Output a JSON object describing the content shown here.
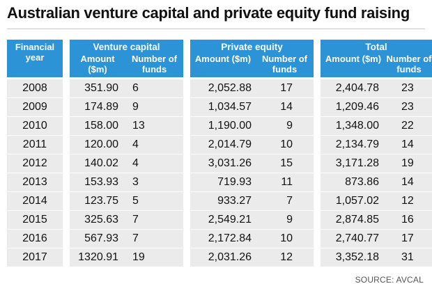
{
  "title": "Australian venture capital and private equity fund raising",
  "header": {
    "financial_year": "Financial year",
    "groups": [
      {
        "title": "Venture capital",
        "amount": "Amount ($m)",
        "count": "Number of funds"
      },
      {
        "title": "Private equity",
        "amount": "Amount ($m)",
        "count": "Number of funds"
      },
      {
        "title": "Total",
        "amount": "Amount ($m)",
        "count": "Number of funds"
      }
    ]
  },
  "rows": [
    {
      "year": "2008",
      "vc_amount": "351.90",
      "vc_funds": "6",
      "pe_amount": "2,052.88",
      "pe_funds": "17",
      "total_amount": "2,404.78",
      "total_funds": "23"
    },
    {
      "year": "2009",
      "vc_amount": "174.89",
      "vc_funds": "9",
      "pe_amount": "1,034.57",
      "pe_funds": "14",
      "total_amount": "1,209.46",
      "total_funds": "23"
    },
    {
      "year": "2010",
      "vc_amount": "158.00",
      "vc_funds": "13",
      "pe_amount": "1,190.00",
      "pe_funds": "9",
      "total_amount": "1,348.00",
      "total_funds": "22"
    },
    {
      "year": "2011",
      "vc_amount": "120.00",
      "vc_funds": "4",
      "pe_amount": "2,014.79",
      "pe_funds": "10",
      "total_amount": "2,134.79",
      "total_funds": "14"
    },
    {
      "year": "2012",
      "vc_amount": "140.02",
      "vc_funds": "4",
      "pe_amount": "3,031.26",
      "pe_funds": "15",
      "total_amount": "3,171.28",
      "total_funds": "19"
    },
    {
      "year": "2013",
      "vc_amount": "153.93",
      "vc_funds": "3",
      "pe_amount": "719.93",
      "pe_funds": "11",
      "total_amount": "873.86",
      "total_funds": "14"
    },
    {
      "year": "2014",
      "vc_amount": "123.75",
      "vc_funds": "5",
      "pe_amount": "933.27",
      "pe_funds": "7",
      "total_amount": "1,057.02",
      "total_funds": "12"
    },
    {
      "year": "2015",
      "vc_amount": "325.63",
      "vc_funds": "7",
      "pe_amount": "2,549.21",
      "pe_funds": "9",
      "total_amount": "2,874.85",
      "total_funds": "16"
    },
    {
      "year": "2016",
      "vc_amount": "567.93",
      "vc_funds": "7",
      "pe_amount": "2,172.84",
      "pe_funds": "10",
      "total_amount": "2,740.77",
      "total_funds": "17"
    },
    {
      "year": "2017",
      "vc_amount": "1320.91",
      "vc_funds": "19",
      "pe_amount": "2,031.26",
      "pe_funds": "12",
      "total_amount": "3,352.18",
      "total_funds": "31"
    }
  ],
  "source": "SOURCE: AVCAL",
  "colors": {
    "header_bg": "#2b93d6",
    "row_shade": "#ebebeb"
  }
}
